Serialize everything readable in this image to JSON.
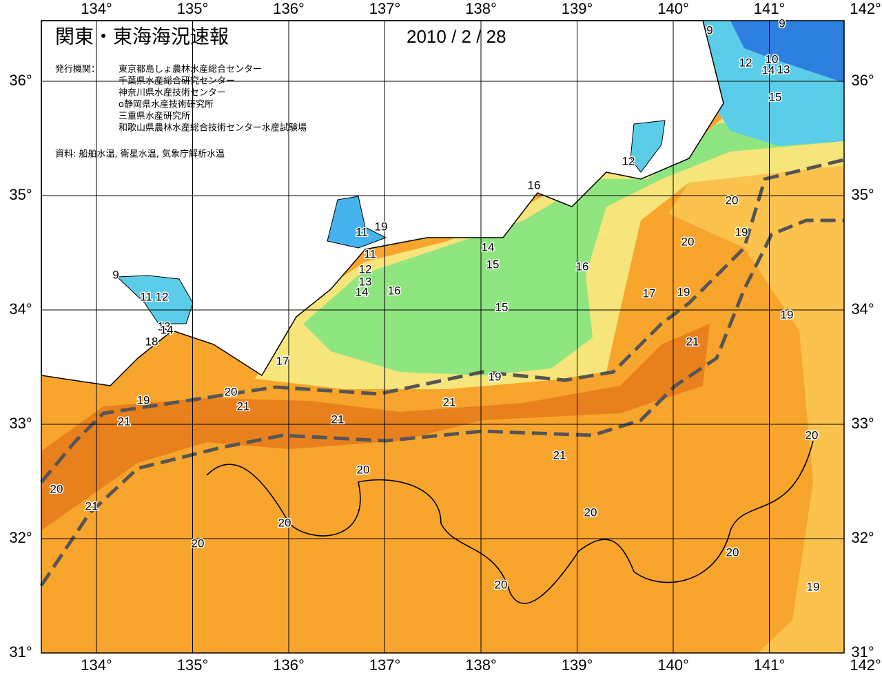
{
  "title": "関東・東海海況速報",
  "date": "2010 / 2 / 28",
  "issuer_label": "発行機関：",
  "agencies": [
    "東京都島しょ農林水産総合センター",
    "千葉県水産総合研究センター",
    "神奈川県水産技術センター",
    "o静岡県水産技術研究所",
    "三重県水産研究所",
    "和歌山県農林水産総合技術センター水産試験場"
  ],
  "source": "資料: 船舶水温, 衛星水温, 気象庁解析水温",
  "lon_labels": [
    "134°",
    "135°",
    "136°",
    "137°",
    "138°",
    "139°",
    "140°",
    "141°",
    "142°"
  ],
  "lat_labels": [
    "36°",
    "35°",
    "34°",
    "33°",
    "32°",
    "31°"
  ],
  "contour_labels": [
    "9",
    "9",
    "12",
    "10",
    "14",
    "13",
    "15",
    "12",
    "16",
    "11",
    "19",
    "14",
    "15",
    "11",
    "12",
    "13",
    "14",
    "16",
    "16",
    "15",
    "17",
    "19",
    "20",
    "20",
    "19",
    "19",
    "21",
    "17",
    "19",
    "9",
    "11",
    "12",
    "13",
    "14",
    "18",
    "20",
    "21",
    "21",
    "21",
    "19",
    "21",
    "20",
    "21",
    "20",
    "20",
    "21",
    "20",
    "20",
    "20",
    "20",
    "20",
    "19"
  ]
}
